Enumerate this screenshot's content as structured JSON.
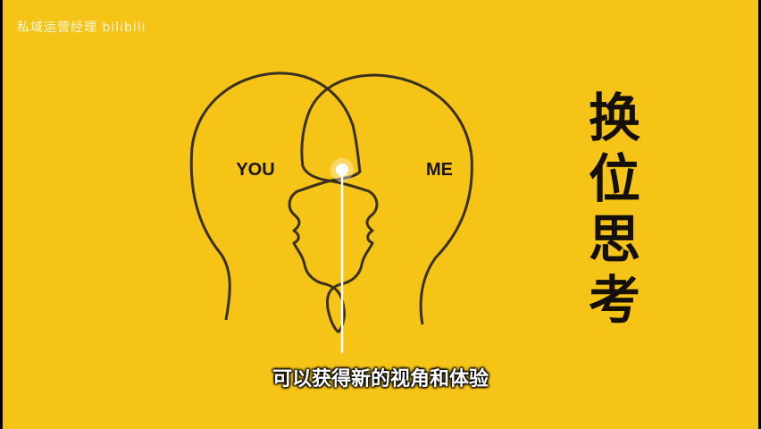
{
  "watermark": "私域运营经理 bilibili",
  "heads": {
    "left_label": "YOU",
    "right_label": "ME"
  },
  "title_chars": [
    "换",
    "位",
    "思",
    "考"
  ],
  "subtitle": "可以获得新的视角和体验",
  "colors": {
    "background": "#f6c417",
    "outline": "#3a3022",
    "text": "#141008",
    "light": "#ffffff"
  }
}
